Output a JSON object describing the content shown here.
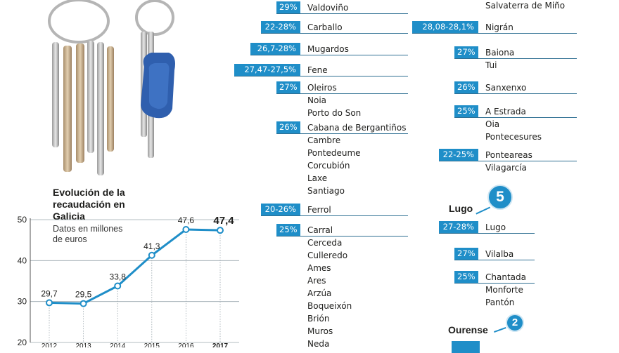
{
  "chart_data": {
    "type": "line",
    "title": "Evolución de la recaudación en Galicia",
    "subtitle": "Datos en millones de euros",
    "x": [
      "2012",
      "2013",
      "2014",
      "2015",
      "2016",
      "2017"
    ],
    "values": [
      29.7,
      29.5,
      33.8,
      41.3,
      47.6,
      47.4
    ],
    "data_labels": [
      "29,7",
      "29,5",
      "33,8",
      "41,3",
      "47,6",
      "47,4"
    ],
    "ylim": [
      20,
      50
    ],
    "yticks": [
      "20",
      "30",
      "40",
      "50"
    ],
    "line_color": "#1f8ec8",
    "grid": true
  },
  "coruna_list": [
    {
      "rate": "29%",
      "towns": [
        "Valdoviño"
      ]
    },
    {
      "rate": "22-28%",
      "towns": [
        "Carballo"
      ]
    },
    {
      "rate": "26,7-28%",
      "towns": [
        "Mugardos"
      ]
    },
    {
      "rate": "27,47-27,5%",
      "towns": [
        "Fene"
      ]
    },
    {
      "rate": "27%",
      "towns": [
        "Oleiros",
        "Noia",
        "Porto do Son"
      ]
    },
    {
      "rate": "26%",
      "towns": [
        "Cabana de Bergantiños",
        "Cambre",
        "Pontedeume",
        "Corcubión",
        "Laxe",
        "Santiago"
      ]
    },
    {
      "rate": "20-26%",
      "towns": [
        "Ferrol"
      ]
    },
    {
      "rate": "25%",
      "towns": [
        "Carral",
        "Cerceda",
        "Culleredo",
        "Ames",
        "Ares",
        "Arzúa",
        "Boqueixón",
        "Brión",
        "Muros",
        "Neda"
      ]
    }
  ],
  "pontevedra_list": [
    {
      "rate": "",
      "towns": [
        "Salvaterra de Miño"
      ]
    },
    {
      "rate": "28,08-28,1%",
      "towns": [
        "Nigrán"
      ]
    },
    {
      "rate": "27%",
      "towns": [
        "Baiona",
        "Tui"
      ]
    },
    {
      "rate": "26%",
      "towns": [
        "Sanxenxo"
      ]
    },
    {
      "rate": "25%",
      "towns": [
        "A Estrada",
        "Oia",
        "Pontecesures"
      ]
    },
    {
      "rate": "22-25%",
      "towns": [
        "Ponteareas",
        "Vilagarcía"
      ]
    }
  ],
  "lugo": {
    "name": "Lugo",
    "count": "5",
    "list": [
      {
        "rate": "27-28%",
        "towns": [
          "Lugo"
        ]
      },
      {
        "rate": "27%",
        "towns": [
          "Vilalba"
        ]
      },
      {
        "rate": "25%",
        "towns": [
          "Chantada",
          "Monforte",
          "Pantón"
        ]
      }
    ]
  },
  "ourense": {
    "name": "Ourense",
    "count": "2"
  },
  "colors": {
    "accent": "#1f8ec8",
    "rule": "#2e6f92"
  }
}
